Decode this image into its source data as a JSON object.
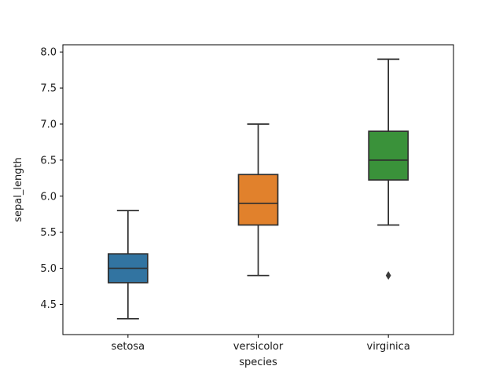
{
  "figure": {
    "background": "#ffffff"
  },
  "chart_data": {
    "type": "box",
    "title": "",
    "xlabel": "species",
    "ylabel": "sepal_length",
    "categories": [
      "setosa",
      "versicolor",
      "virginica"
    ],
    "series": [
      {
        "name": "setosa",
        "whisker_low": 4.3,
        "q1": 4.8,
        "median": 5.0,
        "q3": 5.2,
        "whisker_high": 5.8,
        "outliers": [],
        "color": "#3274A1"
      },
      {
        "name": "versicolor",
        "whisker_low": 4.9,
        "q1": 5.6,
        "median": 5.9,
        "q3": 6.3,
        "whisker_high": 7.0,
        "outliers": [],
        "color": "#E1812C"
      },
      {
        "name": "virginica",
        "whisker_low": 5.6,
        "q1": 6.225,
        "median": 6.5,
        "q3": 6.9,
        "whisker_high": 7.9,
        "outliers": [
          4.9
        ],
        "color": "#3A923A"
      }
    ],
    "yticks": [
      4.5,
      5.0,
      5.5,
      6.0,
      6.5,
      7.0,
      7.5,
      8.0
    ],
    "ytick_labels": [
      "4.5",
      "5.0",
      "5.5",
      "6.0",
      "6.5",
      "7.0",
      "7.5",
      "8.0"
    ],
    "ylim": [
      4.08,
      8.1
    ],
    "grid": false,
    "legend": null,
    "edge_color": "#2e2e2e",
    "outlier_color": "#3a3a3a",
    "axis_color": "#000000",
    "text_color": "#1a1a1a"
  }
}
